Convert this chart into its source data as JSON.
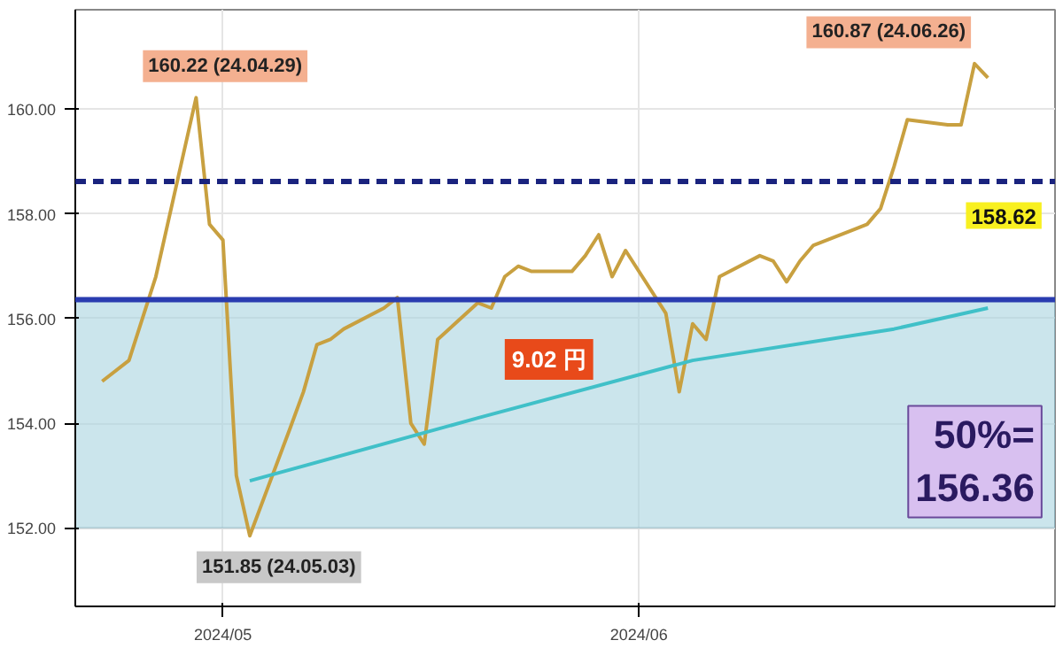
{
  "chart_data": {
    "type": "line",
    "x": [
      "2024-04-22",
      "2024-04-24",
      "2024-04-26",
      "2024-04-29",
      "2024-04-30",
      "2024-05-01",
      "2024-05-02",
      "2024-05-03",
      "2024-05-06",
      "2024-05-07",
      "2024-05-08",
      "2024-05-09",
      "2024-05-10",
      "2024-05-13",
      "2024-05-14",
      "2024-05-15",
      "2024-05-16",
      "2024-05-17",
      "2024-05-20",
      "2024-05-21",
      "2024-05-22",
      "2024-05-23",
      "2024-05-24",
      "2024-05-27",
      "2024-05-28",
      "2024-05-29",
      "2024-05-30",
      "2024-05-31",
      "2024-06-03",
      "2024-06-04",
      "2024-06-05",
      "2024-06-06",
      "2024-06-07",
      "2024-06-10",
      "2024-06-11",
      "2024-06-12",
      "2024-06-13",
      "2024-06-14",
      "2024-06-17",
      "2024-06-18",
      "2024-06-19",
      "2024-06-20",
      "2024-06-21",
      "2024-06-24",
      "2024-06-25",
      "2024-06-26",
      "2024-06-27"
    ],
    "series": [
      {
        "color": "#c8a040",
        "values": [
          154.8,
          155.2,
          156.8,
          160.22,
          157.8,
          157.5,
          153.0,
          151.85,
          153.9,
          154.6,
          155.5,
          155.6,
          155.8,
          156.2,
          156.4,
          154.0,
          153.6,
          155.6,
          156.3,
          156.2,
          156.8,
          157.0,
          156.9,
          156.9,
          157.2,
          157.6,
          156.8,
          157.3,
          156.1,
          154.6,
          155.9,
          155.6,
          156.8,
          157.2,
          157.1,
          156.7,
          157.1,
          157.4,
          157.7,
          157.8,
          158.1,
          158.9,
          159.8,
          159.7,
          159.7,
          160.87,
          160.6
        ]
      },
      {
        "color": "#40c0c8",
        "x": [
          "2024-05-03",
          "2024-05-20",
          "2024-06-05",
          "2024-06-20",
          "2024-06-27"
        ],
        "values": [
          152.9,
          154.1,
          155.2,
          155.8,
          156.2
        ]
      }
    ],
    "xlim": [
      "2024-04-20",
      "2024-07-02"
    ],
    "xticks": [
      {
        "value": "2024-05-01",
        "label": "2024/05"
      },
      {
        "value": "2024-06-01",
        "label": "2024/06"
      }
    ],
    "ylim": [
      150.5,
      161.9
    ],
    "yticks": [
      {
        "value": 152,
        "label": "152.00"
      },
      {
        "value": 154,
        "label": "154.00"
      },
      {
        "value": 156,
        "label": "156.00"
      },
      {
        "value": 158,
        "label": "158.00"
      },
      {
        "value": 160,
        "label": "160.00"
      }
    ],
    "grid": true,
    "ref_lines": [
      {
        "axis": "y",
        "value": 156.36,
        "label": "50%=\n156.36",
        "color": "#2a3cb0",
        "line_style": "solid"
      },
      {
        "axis": "y",
        "value": 158.62,
        "label": "158.62",
        "color": "#1a237e",
        "line_style": "dashed"
      }
    ],
    "bands": [
      {
        "axis": "y",
        "from": 152.0,
        "to": 156.36,
        "color": "#a8d4e0"
      }
    ],
    "annotations": [
      {
        "text": "160.22 (24.04.29)",
        "x": "2024-04-29",
        "y": 160.22
      },
      {
        "text": "160.87 (24.06.26)",
        "x": "2024-06-26",
        "y": 160.87
      },
      {
        "text": "151.85 (24.05.03)",
        "x": "2024-05-03",
        "y": 151.85
      },
      "9.02 円"
    ]
  }
}
